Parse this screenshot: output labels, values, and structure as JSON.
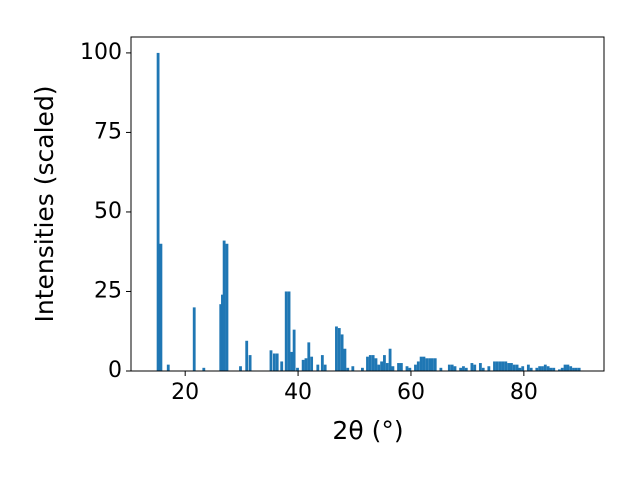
{
  "chart_data": {
    "type": "bar",
    "x_label": "2θ (°)",
    "y_label": "Intensities (scaled)",
    "color": "#1f77b4",
    "xlim": [
      10.4,
      94.2
    ],
    "ylim": [
      0,
      105
    ],
    "xticks": [
      20,
      40,
      60,
      80
    ],
    "yticks": [
      0,
      25,
      50,
      75,
      100
    ],
    "grid": false,
    "x": [
      15.2,
      15.7,
      17.0,
      21.6,
      23.3,
      26.3,
      26.6,
      26.9,
      27.4,
      29.8,
      30.9,
      31.5,
      35.2,
      35.8,
      36.3,
      37.1,
      37.9,
      38.4,
      38.9,
      39.3,
      39.9,
      40.9,
      41.4,
      41.9,
      42.4,
      43.5,
      44.3,
      44.8,
      46.8,
      47.3,
      47.8,
      48.3,
      48.8,
      49.7,
      51.4,
      52.3,
      52.8,
      53.3,
      53.8,
      54.3,
      54.8,
      55.3,
      55.8,
      56.3,
      56.8,
      57.8,
      58.3,
      59.3,
      59.8,
      60.8,
      61.3,
      61.8,
      62.3,
      62.8,
      63.3,
      63.8,
      64.3,
      65.3,
      66.8,
      67.3,
      67.8,
      68.8,
      69.3,
      69.8,
      70.8,
      71.3,
      72.3,
      72.8,
      73.8,
      74.8,
      75.3,
      75.8,
      76.3,
      76.8,
      77.3,
      77.8,
      78.3,
      78.8,
      79.3,
      79.8,
      80.8,
      81.3,
      82.3,
      82.8,
      83.3,
      83.8,
      84.3,
      84.8,
      85.3,
      86.3,
      86.8,
      87.3,
      87.8,
      88.3,
      88.8,
      89.3,
      89.8
    ],
    "values": [
      100,
      40,
      2,
      20,
      1,
      21,
      24,
      41,
      40,
      1.5,
      9.5,
      5,
      6.5,
      5.5,
      5.5,
      3,
      25,
      25,
      6,
      13,
      1,
      3.5,
      4,
      9,
      4.5,
      2,
      5,
      2,
      14,
      13.5,
      11.5,
      7,
      1,
      1.5,
      1,
      4.5,
      5,
      5,
      4,
      2,
      3,
      5,
      2.5,
      7,
      1.5,
      2.5,
      2.5,
      1.5,
      1,
      2,
      3,
      4.5,
      4.5,
      4,
      4,
      4,
      4,
      1,
      2,
      2,
      1.5,
      1,
      1.5,
      1,
      2.5,
      2,
      2.5,
      1,
      1.5,
      3,
      3,
      3,
      3,
      3,
      2.5,
      2.5,
      2,
      2,
      1,
      1.5,
      2,
      1,
      1,
      1.5,
      1.5,
      2,
      1.5,
      1,
      1,
      0.5,
      1,
      2,
      2,
      1.5,
      1,
      1,
      1
    ]
  }
}
